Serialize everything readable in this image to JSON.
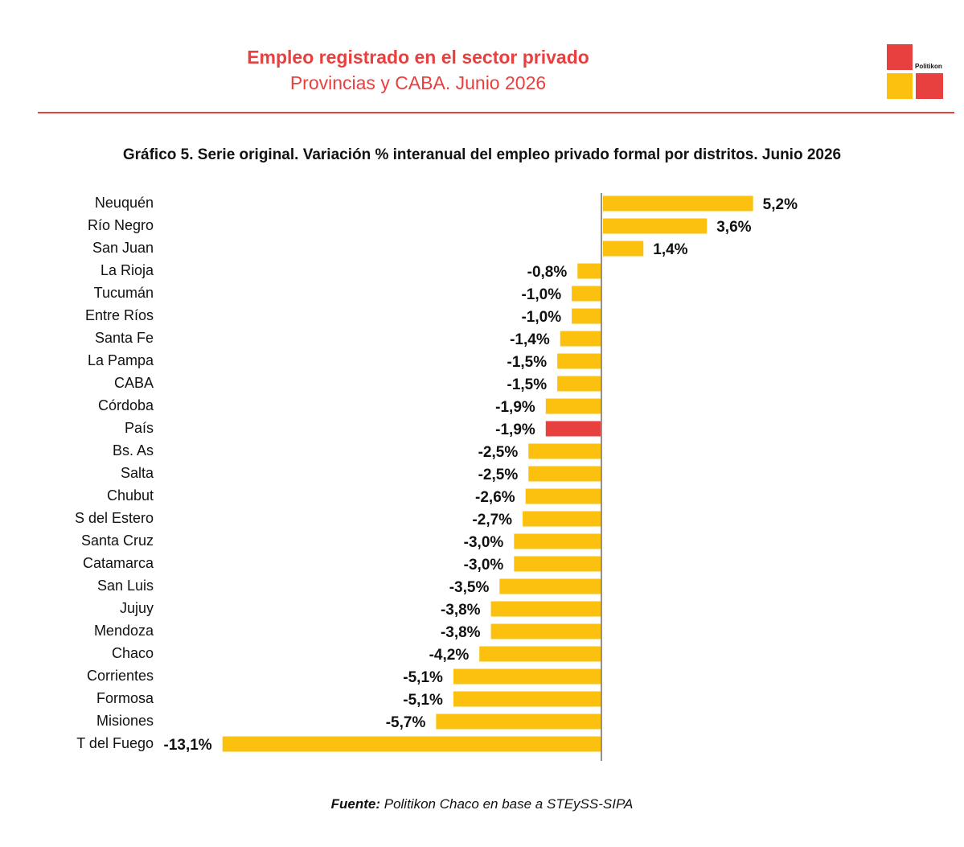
{
  "header": {
    "title": "Empleo registrado en el sector privado",
    "subtitle": "Provincias y CABA. Junio 2026"
  },
  "logo": {
    "text": "Politikon",
    "colors": [
      "#e8403f",
      "#fcc10f"
    ]
  },
  "chart_data": {
    "type": "bar",
    "orientation": "horizontal",
    "title": "Gráfico 5. Serie original. Variación % interanual del empleo privado formal por distritos. Junio 2026",
    "categories": [
      "Neuquén",
      "Río Negro",
      "San Juan",
      "La Rioja",
      "Tucumán",
      "Entre Ríos",
      "Santa Fe",
      "La Pampa",
      "CABA",
      "Córdoba",
      "País",
      "Bs. As",
      "Salta",
      "Chubut",
      "S del Estero",
      "Santa Cruz",
      "Catamarca",
      "San Luis",
      "Jujuy",
      "Mendoza",
      "Chaco",
      "Corrientes",
      "Formosa",
      "Misiones",
      "T del Fuego"
    ],
    "values": [
      5.2,
      3.6,
      1.4,
      -0.8,
      -1.0,
      -1.0,
      -1.4,
      -1.5,
      -1.5,
      -1.9,
      -1.9,
      -2.5,
      -2.5,
      -2.6,
      -2.7,
      -3.0,
      -3.0,
      -3.5,
      -3.8,
      -3.8,
      -4.2,
      -5.1,
      -5.1,
      -5.7,
      -13.1
    ],
    "labels": [
      "5,2%",
      "3,6%",
      "1,4%",
      "-0,8%",
      "-1,0%",
      "-1,0%",
      "-1,4%",
      "-1,5%",
      "-1,5%",
      "-1,9%",
      "-1,9%",
      "-2,5%",
      "-2,5%",
      "-2,6%",
      "-2,7%",
      "-3,0%",
      "-3,0%",
      "-3,5%",
      "-3,8%",
      "-3,8%",
      "-4,2%",
      "-5,1%",
      "-5,1%",
      "-5,7%",
      "-13,1%"
    ],
    "colors": {
      "default": "#fcc10f",
      "highlight": "#e8403f"
    },
    "highlight": "País",
    "xlim": [
      -13.1,
      5.2
    ],
    "grid": false,
    "legend": "none"
  },
  "source": {
    "label": "Fuente:",
    "text": " Politikon Chaco en base a STEySS-SIPA"
  }
}
